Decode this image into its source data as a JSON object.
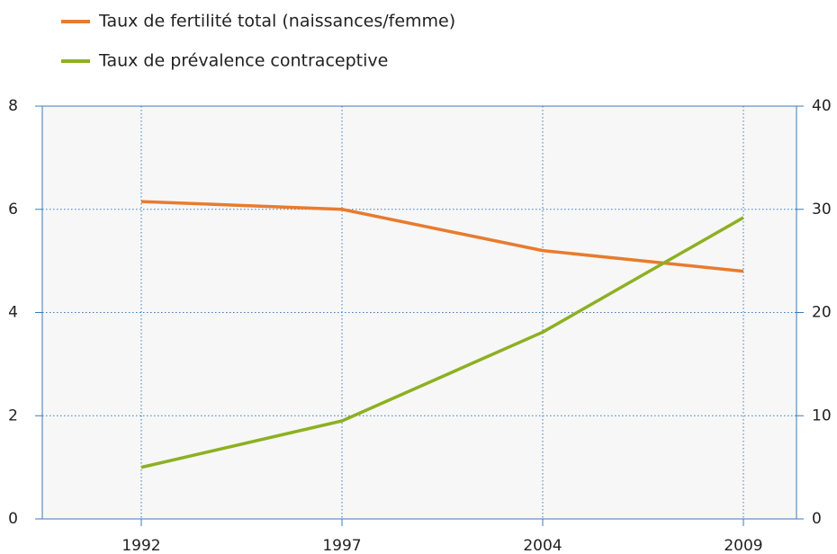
{
  "chart_data": {
    "type": "line",
    "categories": [
      "1992",
      "1997",
      "2004",
      "2009"
    ],
    "series": [
      {
        "name": "Taux de fertilité total (naissances/femme)",
        "color": "#e87b2e",
        "values": [
          6.15,
          6.0,
          5.2,
          4.8
        ]
      },
      {
        "name": "Taux de prévalence contraceptive",
        "color": "#8db022",
        "axis": "y2",
        "values": [
          5.0,
          9.5,
          18.1,
          29.2
        ]
      }
    ],
    "ylim": [
      0,
      8
    ],
    "yticks": [
      0,
      2,
      4,
      6,
      8
    ],
    "y2lim": [
      0,
      40
    ],
    "y2ticks": [
      0,
      10,
      20,
      30,
      40
    ],
    "grid": true,
    "legend": "top-left"
  }
}
